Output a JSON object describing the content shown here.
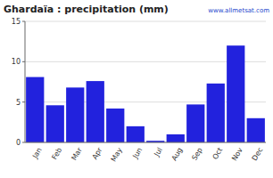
{
  "chart_data": {
    "type": "bar",
    "title": "Ghardaïa : precipitation (mm)",
    "categories": [
      "Jan",
      "Feb",
      "Mar",
      "Apr",
      "May",
      "Jun",
      "Jul",
      "Aug",
      "Sep",
      "Oct",
      "Nov",
      "Dec"
    ],
    "values": [
      8.1,
      4.6,
      6.8,
      7.6,
      4.2,
      2.0,
      0.2,
      1.0,
      4.7,
      7.3,
      12.0,
      3.0
    ],
    "color": "#2222dd",
    "ylim": [
      0,
      15
    ],
    "yticks": [
      0,
      5,
      10,
      15
    ],
    "grid": true,
    "annotations": [
      "www.allmetsat.com"
    ]
  }
}
